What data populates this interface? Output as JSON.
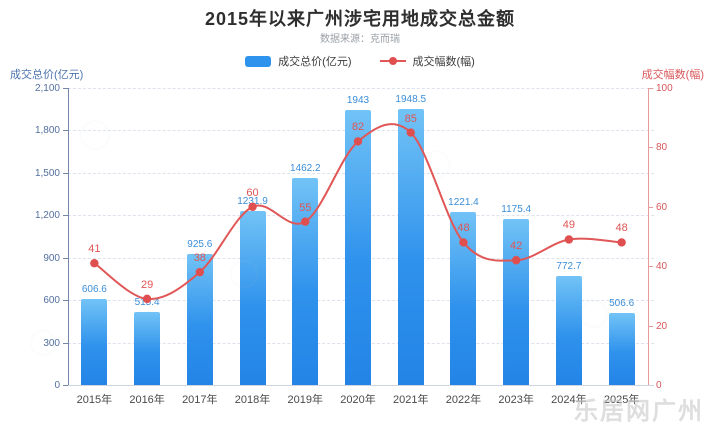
{
  "page": {
    "title": "2015年以来广州涉宅用地成交总金额",
    "subtitle": "数据来源：克而瑞",
    "watermark": "乐居网广州"
  },
  "legend": [
    {
      "label": "成交总价(亿元)",
      "type": "bar",
      "color": "#2e93ec"
    },
    {
      "label": "成交幅数(幅)",
      "type": "line",
      "color": "#e15757"
    }
  ],
  "colors": {
    "bar_top": "#72c3f6",
    "bar_bottom": "#2384e6",
    "line": "#e15757",
    "point": "#e04f4f",
    "bar_label": "#3a8ed8",
    "line_label": "#e05555",
    "left_axis_text": "#53709f",
    "right_axis_text": "#d9575a"
  },
  "chart_data": {
    "type": "bar+line combo (dual axis)",
    "title": "2015年以来广州涉宅用地成交总金额",
    "categories": [
      "2015年",
      "2016年",
      "2017年",
      "2018年",
      "2019年",
      "2020年",
      "2021年",
      "2022年",
      "2023年",
      "2024年",
      "2025年"
    ],
    "series": [
      {
        "name": "成交总价(亿元)",
        "type": "bar",
        "axis": "left",
        "values": [
          606.6,
          515.4,
          925.6,
          1231.9,
          1462.2,
          1943,
          1948.5,
          1221.4,
          1175.4,
          772.7,
          506.6
        ]
      },
      {
        "name": "成交幅数(幅)",
        "type": "line",
        "axis": "right",
        "values": [
          41,
          29,
          38,
          60,
          55,
          82,
          85,
          48,
          42,
          49,
          48
        ]
      }
    ],
    "left_axis": {
      "title": "成交总价(亿元)",
      "min": 0,
      "max": 2100,
      "tick_values": [
        0,
        300,
        600,
        900,
        1200,
        1500,
        1800,
        2100
      ],
      "tick_labels": [
        "0",
        "300",
        "600",
        "900",
        "1,200",
        "1,500",
        "1,800",
        "2,100"
      ]
    },
    "right_axis": {
      "title": "成交幅数(幅)",
      "min": 0,
      "max": 100,
      "tick_values": [
        0,
        20,
        40,
        60,
        80,
        100
      ],
      "tick_labels": [
        "0",
        "20",
        "40",
        "60",
        "80",
        "100"
      ]
    },
    "grid": "horizontal dashed lines aligned to left-axis ticks",
    "legend_position": "top center"
  }
}
